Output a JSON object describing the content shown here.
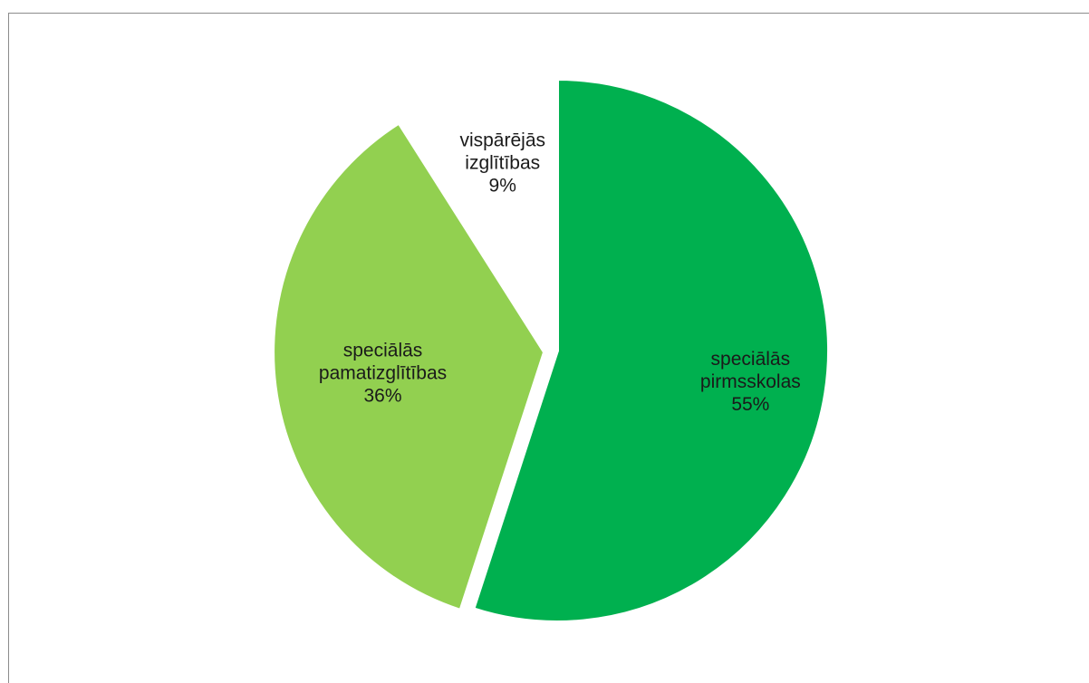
{
  "chart_data": {
    "type": "pie",
    "title": "",
    "slices": [
      {
        "label_lines": [
          "speciālās",
          "pirmsskolas"
        ],
        "value": 55,
        "value_label": "55%",
        "color": "#00b04f"
      },
      {
        "label_lines": [
          "speciālās",
          "pamatizglītības"
        ],
        "value": 36,
        "value_label": "36%",
        "color": "#92d050"
      },
      {
        "label_lines": [
          "vispārējās",
          "izglītības"
        ],
        "value": 9,
        "value_label": "9%",
        "color": "#ffffff"
      }
    ],
    "start_angle_deg": 0,
    "direction": "clockwise",
    "exploded_slice": 1,
    "legend": "none",
    "data_labels": "inside"
  }
}
